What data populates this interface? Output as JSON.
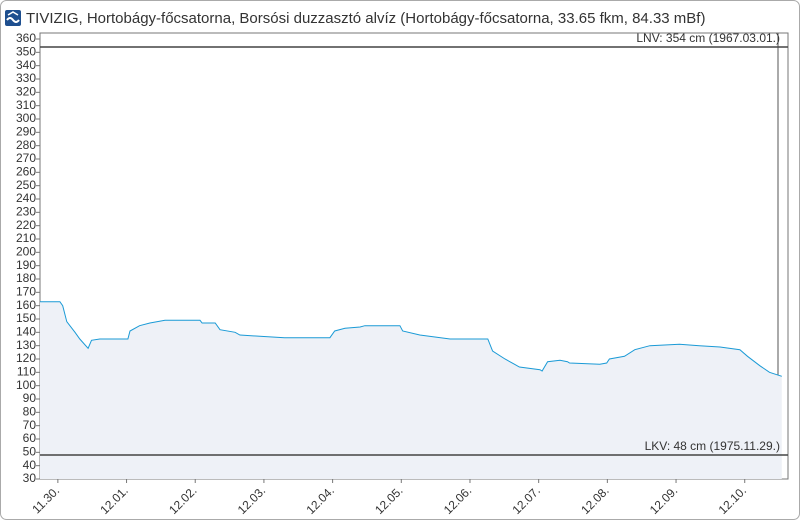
{
  "chart_data": {
    "type": "area",
    "title": "TIVIZIG, Hortobágy-főcsatorna, Borsósi duzzasztó alvíz (Hortobágy-főcsatorna, 33.65 fkm, 84.33 mBf)",
    "x": [
      -0.26,
      0.03,
      0.07,
      0.13,
      0.25,
      0.32,
      0.44,
      0.49,
      0.61,
      1.02,
      1.05,
      1.19,
      1.34,
      1.56,
      2.07,
      2.1,
      2.29,
      2.36,
      2.58,
      2.65,
      2.94,
      3.3,
      3.96,
      4.03,
      4.18,
      4.4,
      4.47,
      4.98,
      5.02,
      5.27,
      5.71,
      6.26,
      6.33,
      6.51,
      6.65,
      6.72,
      7.02,
      7.05,
      7.13,
      7.31,
      7.42,
      7.45,
      7.89,
      7.99,
      8.03,
      8.25,
      8.4,
      8.62,
      9.05,
      9.34,
      9.64,
      9.93,
      10.04,
      10.22,
      10.36,
      10.54
    ],
    "values": [
      163,
      163,
      160,
      148,
      140,
      135,
      128,
      134,
      135,
      135,
      141,
      145,
      147,
      149,
      149,
      147,
      147,
      142,
      140,
      138,
      137,
      136,
      136,
      141,
      143,
      144,
      145,
      145,
      141,
      138,
      135,
      135,
      126,
      120,
      116,
      114,
      112,
      111,
      118,
      119,
      118,
      117,
      116,
      117,
      120,
      122,
      127,
      130,
      131,
      130,
      129,
      127,
      122,
      115,
      110,
      107
    ],
    "color": "#1a9ad6",
    "xlim": [
      -0.26,
      10.63
    ],
    "xticks": [
      {
        "value": 0,
        "label": "11.30."
      },
      {
        "value": 1,
        "label": "12.01."
      },
      {
        "value": 2,
        "label": "12.02."
      },
      {
        "value": 3,
        "label": "12.03."
      },
      {
        "value": 4,
        "label": "12.04."
      },
      {
        "value": 5,
        "label": "12.05."
      },
      {
        "value": 6,
        "label": "12.06."
      },
      {
        "value": 7,
        "label": "12.07."
      },
      {
        "value": 8,
        "label": "12.08."
      },
      {
        "value": 9,
        "label": "12.09."
      },
      {
        "value": 10,
        "label": "12.10."
      }
    ],
    "ylim": [
      30,
      364.5
    ],
    "yticks": [
      30,
      40,
      50,
      60,
      70,
      80,
      90,
      100,
      110,
      120,
      130,
      140,
      150,
      160,
      170,
      180,
      190,
      200,
      210,
      220,
      230,
      240,
      250,
      260,
      270,
      280,
      290,
      300,
      310,
      320,
      330,
      340,
      350,
      360
    ],
    "reference_lines": [
      {
        "value": 354,
        "label": "LNV: 354 cm (1967.03.01.)"
      },
      {
        "value": 48,
        "label": "LKV: 48 cm (1975.11.29.)"
      }
    ]
  }
}
